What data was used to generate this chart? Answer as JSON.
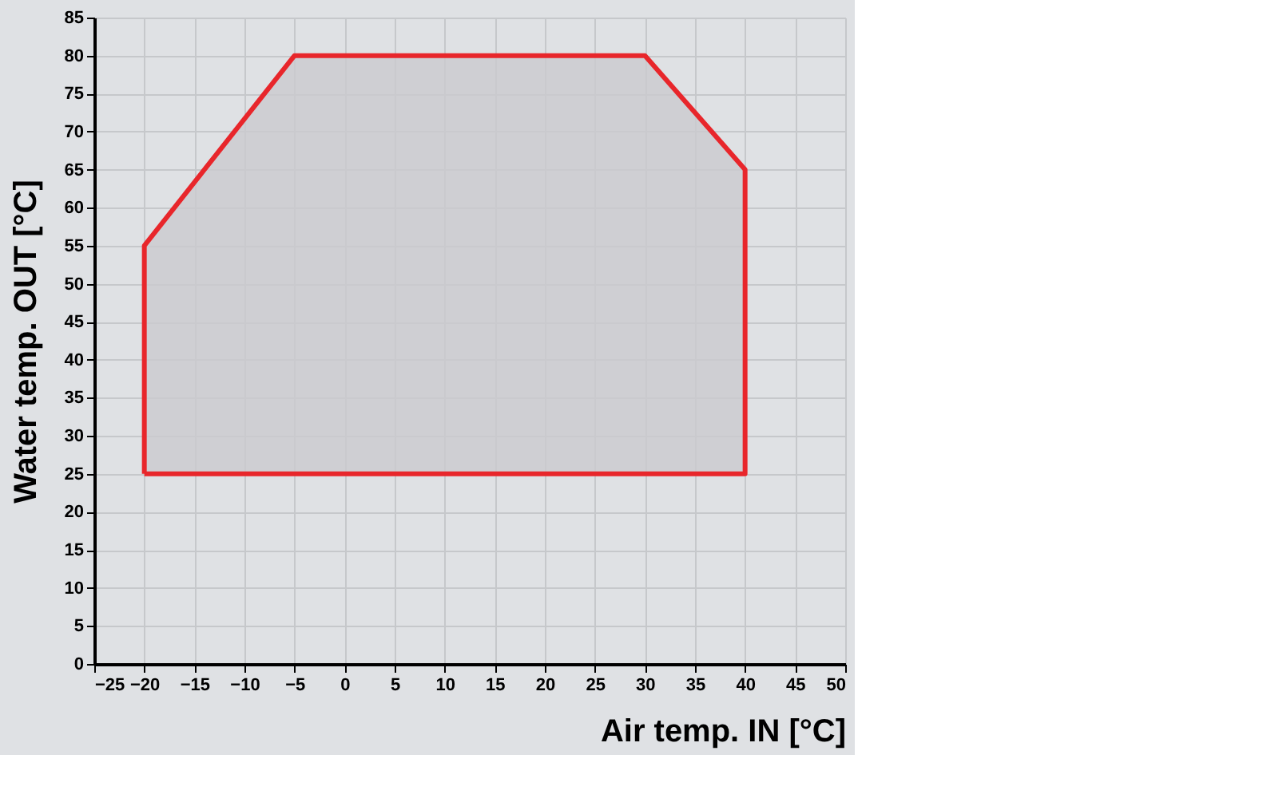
{
  "chart_data": {
    "type": "area",
    "xlabel": "Air temp. IN [°C]",
    "ylabel": "Water temp. OUT  [°C]",
    "x": [
      -20,
      -20,
      -5,
      30,
      40,
      40,
      -20
    ],
    "series": [
      {
        "color": "#e8262b",
        "values": [
          25,
          55,
          80,
          80,
          65,
          25,
          25
        ]
      }
    ],
    "xlim": [
      -25,
      50
    ],
    "xticks": [
      -25,
      -20,
      -15,
      -10,
      -5,
      0,
      5,
      10,
      15,
      20,
      25,
      30,
      35,
      40,
      45,
      50
    ],
    "ylim": [
      0,
      85
    ],
    "yticks": [
      0,
      5,
      10,
      15,
      20,
      25,
      30,
      35,
      40,
      45,
      50,
      55,
      60,
      65,
      70,
      75,
      80,
      85
    ],
    "grid": true,
    "legend": false
  }
}
